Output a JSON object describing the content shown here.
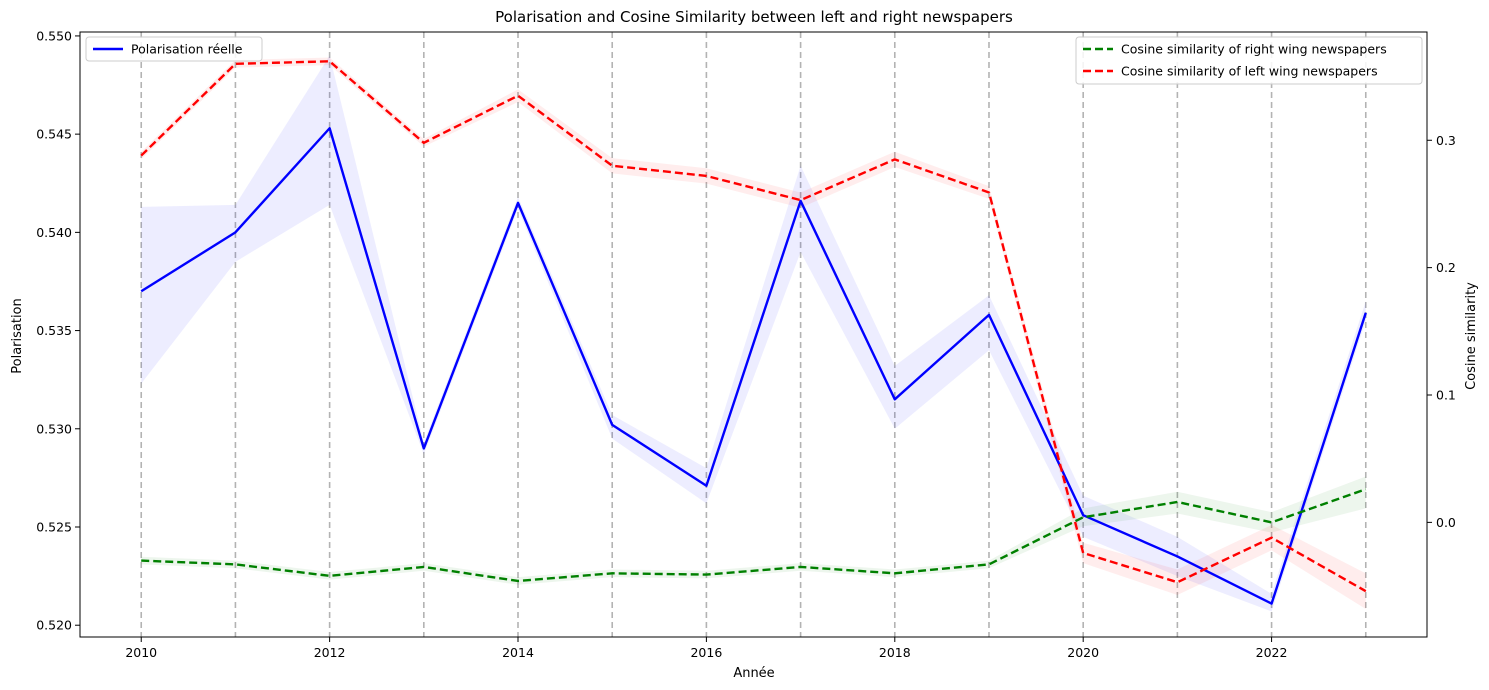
{
  "chart_data": {
    "type": "line",
    "title": "Polarisation and Cosine Similarity between left and right newspapers",
    "xlabel": "Année",
    "ylabel": "Polarisation",
    "ylabel_right": "Cosine similarity",
    "xlim": [
      2009.35,
      2023.65
    ],
    "ylim": [
      0.5194,
      0.5502
    ],
    "ylim_right": [
      -0.09,
      0.385
    ],
    "xticks": [
      2010,
      2012,
      2014,
      2016,
      2018,
      2020,
      2022
    ],
    "yticks": [
      0.52,
      0.525,
      0.53,
      0.535,
      0.54,
      0.545,
      0.55
    ],
    "yticks_right": [
      0.0,
      0.1,
      0.2,
      0.3
    ],
    "vertical_lines": [
      2010,
      2011,
      2012,
      2013,
      2014,
      2015,
      2016,
      2017,
      2018,
      2019,
      2020,
      2021,
      2022,
      2023
    ],
    "x": [
      2010,
      2011,
      2012,
      2013,
      2014,
      2015,
      2016,
      2017,
      2018,
      2019,
      2020,
      2021,
      2022,
      2023
    ],
    "series": [
      {
        "name": "Polarisation réelle",
        "axis": "left",
        "color": "#0000ff",
        "style": "solid",
        "values": [
          0.537,
          0.54,
          0.5453,
          0.529,
          0.5415,
          0.5302,
          0.5271,
          0.5416,
          0.5315,
          0.5358,
          0.5256,
          0.5235,
          0.5211,
          0.5359
        ],
        "band_lower": [
          0.5323,
          0.5385,
          0.5414,
          0.5287,
          0.5412,
          0.5295,
          0.5262,
          0.539,
          0.53,
          0.534,
          0.5245,
          0.5225,
          0.5207,
          0.5355
        ],
        "band_upper": [
          0.5413,
          0.5414,
          0.549,
          0.5293,
          0.5418,
          0.5307,
          0.528,
          0.5434,
          0.5332,
          0.5368,
          0.5266,
          0.5245,
          0.5216,
          0.5365
        ]
      },
      {
        "name": "Cosine similarity of right wing newspapers",
        "axis": "right",
        "color": "#008000",
        "style": "dashed",
        "values": [
          -0.03,
          -0.033,
          -0.042,
          -0.035,
          -0.046,
          -0.04,
          -0.041,
          -0.035,
          -0.04,
          -0.033,
          0.004,
          0.016,
          0.0,
          0.026
        ],
        "band_lower": [
          -0.033,
          -0.036,
          -0.045,
          -0.038,
          -0.049,
          -0.043,
          -0.044,
          -0.038,
          -0.043,
          -0.036,
          -0.003,
          0.007,
          -0.008,
          0.011
        ],
        "band_upper": [
          -0.027,
          -0.03,
          -0.039,
          -0.032,
          -0.043,
          -0.037,
          -0.038,
          -0.032,
          -0.037,
          -0.03,
          0.011,
          0.024,
          0.008,
          0.036
        ]
      },
      {
        "name": "Cosine similarity of left wing newspapers",
        "axis": "right",
        "color": "#ff0000",
        "style": "dashed",
        "values": [
          0.288,
          0.36,
          0.362,
          0.298,
          0.335,
          0.28,
          0.272,
          0.253,
          0.285,
          0.259,
          -0.024,
          -0.047,
          -0.012,
          -0.054
        ],
        "band_lower": [
          0.285,
          0.357,
          0.359,
          0.295,
          0.33,
          0.274,
          0.266,
          0.247,
          0.279,
          0.254,
          -0.032,
          -0.057,
          -0.022,
          -0.068
        ],
        "band_upper": [
          0.291,
          0.363,
          0.365,
          0.301,
          0.34,
          0.286,
          0.278,
          0.259,
          0.291,
          0.264,
          -0.016,
          -0.037,
          -0.002,
          -0.04
        ]
      }
    ],
    "legend_left": {
      "placement": "upper-left",
      "entries": [
        "Polarisation réelle"
      ]
    },
    "legend_right": {
      "placement": "upper-right",
      "entries": [
        "Cosine similarity of right wing newspapers",
        "Cosine similarity of left wing newspapers"
      ]
    },
    "grid": false
  }
}
